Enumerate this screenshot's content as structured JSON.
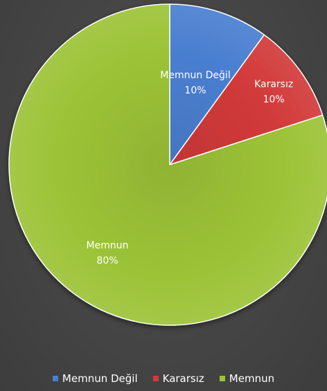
{
  "chart_data": {
    "type": "pie",
    "categories": [
      "Memnun Değil",
      "Kararsız",
      "Memnun"
    ],
    "values": [
      10,
      10,
      80
    ],
    "labels": [
      "10%",
      "10%",
      "80%"
    ],
    "colors": [
      "#4a7fd0",
      "#d23a3a",
      "#9cc337"
    ],
    "legend_position": "bottom",
    "start_angle": "12 o'clock",
    "direction": "clockwise",
    "title": ""
  }
}
